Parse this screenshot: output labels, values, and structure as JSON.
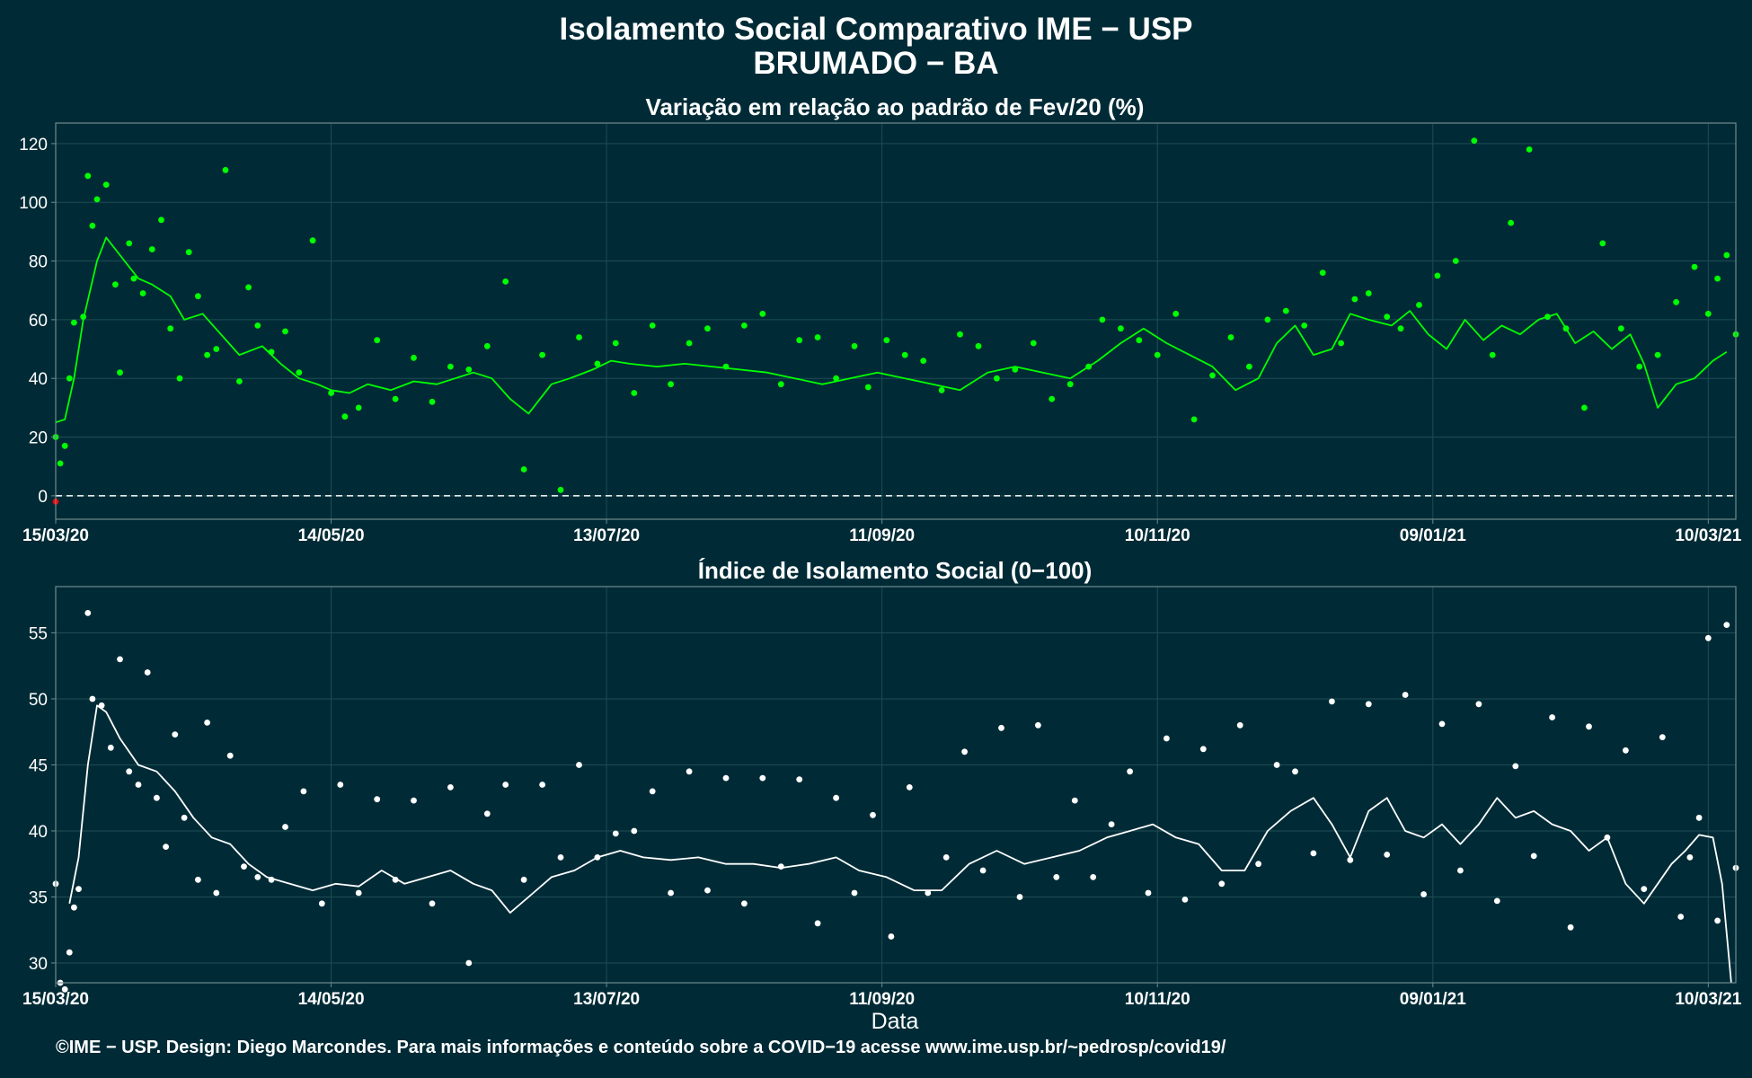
{
  "header": {
    "title": "Isolamento Social Comparativo IME − USP",
    "subtitle": "BRUMADO − BA"
  },
  "footer": {
    "caption": "©IME − USP. Design: Diego Marcondes. Para mais informações e conteúdo sobre a COVID−19 acesse www.ime.usp.br/~pedrosp/covid19/"
  },
  "colors": {
    "background": "#002b36",
    "panel_border": "#6d8a8e",
    "grid": "#1e4c54",
    "variation_points": "#00ff00",
    "variation_line": "#00ff00",
    "negative_point": "#ff0000",
    "index_points": "#ffffff",
    "index_line": "#ffffff",
    "text": "#ffffff"
  },
  "chart_data": [
    {
      "type": "scatter",
      "title": "Variação em relação ao padrão de Fev/20 (%)",
      "xlabel": "",
      "ylabel": "",
      "x_range": [
        "2020-03-15",
        "2021-03-16"
      ],
      "x_ticks": [
        "15/03/20",
        "14/05/20",
        "13/07/20",
        "11/09/20",
        "10/11/20",
        "09/01/21",
        "10/03/21"
      ],
      "ylim": [
        -8,
        127
      ],
      "y_ticks": [
        0,
        20,
        40,
        60,
        80,
        100,
        120
      ],
      "reference_line": {
        "y": 0,
        "style": "dashed"
      },
      "grid": true,
      "series": [
        {
          "kind": "points",
          "x": [
            "2020-03-15",
            "2020-03-16",
            "2020-03-17",
            "2020-03-18",
            "2020-03-19",
            "2020-03-21",
            "2020-03-22",
            "2020-03-23",
            "2020-03-24",
            "2020-03-26",
            "2020-03-28",
            "2020-03-29",
            "2020-03-31",
            "2020-04-01",
            "2020-04-03",
            "2020-04-05",
            "2020-04-07",
            "2020-04-09",
            "2020-04-11",
            "2020-04-13",
            "2020-04-15",
            "2020-04-17",
            "2020-04-19",
            "2020-04-21",
            "2020-04-24",
            "2020-04-26",
            "2020-04-28",
            "2020-05-01",
            "2020-05-04",
            "2020-05-07",
            "2020-05-10",
            "2020-05-14",
            "2020-05-17",
            "2020-05-20",
            "2020-05-24",
            "2020-05-28",
            "2020-06-01",
            "2020-06-05",
            "2020-06-09",
            "2020-06-13",
            "2020-06-17",
            "2020-06-21",
            "2020-06-25",
            "2020-06-29",
            "2020-07-03",
            "2020-07-07",
            "2020-07-11",
            "2020-07-15",
            "2020-07-19",
            "2020-07-23",
            "2020-07-27",
            "2020-07-31",
            "2020-08-04",
            "2020-08-08",
            "2020-08-12",
            "2020-08-16",
            "2020-08-20",
            "2020-08-24",
            "2020-08-28",
            "2020-09-01",
            "2020-09-05",
            "2020-09-08",
            "2020-09-12",
            "2020-09-16",
            "2020-09-20",
            "2020-09-24",
            "2020-09-28",
            "2020-10-02",
            "2020-10-06",
            "2020-10-10",
            "2020-10-14",
            "2020-10-18",
            "2020-10-22",
            "2020-10-26",
            "2020-10-29",
            "2020-11-02",
            "2020-11-06",
            "2020-11-10",
            "2020-11-14",
            "2020-11-18",
            "2020-11-22",
            "2020-11-26",
            "2020-11-30",
            "2020-12-04",
            "2020-12-08",
            "2020-12-12",
            "2020-12-16",
            "2020-12-20",
            "2020-12-23",
            "2020-12-26",
            "2020-12-30",
            "2021-01-02",
            "2021-01-06",
            "2021-01-10",
            "2021-01-14",
            "2021-01-18",
            "2021-01-22",
            "2021-01-26",
            "2021-01-30",
            "2021-02-03",
            "2021-02-07",
            "2021-02-11",
            "2021-02-15",
            "2021-02-19",
            "2021-02-23",
            "2021-02-27",
            "2021-03-03",
            "2021-03-07",
            "2021-03-10",
            "2021-03-12",
            "2021-03-14",
            "2021-03-16"
          ],
          "y": [
            20,
            11,
            17,
            40,
            59,
            61,
            109,
            92,
            101,
            106,
            72,
            42,
            86,
            74,
            69,
            84,
            94,
            57,
            40,
            83,
            68,
            48,
            50,
            111,
            39,
            71,
            58,
            49,
            56,
            42,
            87,
            35,
            27,
            30,
            53,
            33,
            47,
            32,
            44,
            43,
            51,
            73,
            9,
            48,
            2,
            54,
            45,
            52,
            35,
            58,
            38,
            52,
            57,
            44,
            58,
            62,
            38,
            53,
            54,
            40,
            51,
            37,
            53,
            48,
            46,
            36,
            55,
            51,
            40,
            43,
            52,
            33,
            38,
            44,
            60,
            57,
            53,
            48,
            62,
            26,
            41,
            54,
            44,
            60,
            63,
            58,
            76,
            52,
            67,
            69,
            61,
            57,
            65,
            75,
            80,
            121,
            48,
            93,
            118,
            61,
            57,
            30,
            86,
            57,
            44,
            48,
            66,
            78,
            62,
            74,
            82,
            55
          ]
        },
        {
          "kind": "negative_point",
          "x": [
            "2020-03-15"
          ],
          "y": [
            -2
          ]
        },
        {
          "kind": "smoothed_line",
          "x": [
            "2020-03-15",
            "2020-03-17",
            "2020-03-19",
            "2020-03-21",
            "2020-03-24",
            "2020-03-26",
            "2020-03-29",
            "2020-04-02",
            "2020-04-05",
            "2020-04-09",
            "2020-04-12",
            "2020-04-16",
            "2020-04-20",
            "2020-04-24",
            "2020-04-29",
            "2020-05-03",
            "2020-05-07",
            "2020-05-11",
            "2020-05-14",
            "2020-05-18",
            "2020-05-22",
            "2020-05-27",
            "2020-06-01",
            "2020-06-06",
            "2020-06-10",
            "2020-06-14",
            "2020-06-18",
            "2020-06-22",
            "2020-06-26",
            "2020-07-01",
            "2020-07-05",
            "2020-07-10",
            "2020-07-14",
            "2020-07-18",
            "2020-07-24",
            "2020-07-30",
            "2020-08-05",
            "2020-08-11",
            "2020-08-17",
            "2020-08-23",
            "2020-08-29",
            "2020-09-04",
            "2020-09-10",
            "2020-09-16",
            "2020-09-22",
            "2020-09-28",
            "2020-10-04",
            "2020-10-10",
            "2020-10-16",
            "2020-10-22",
            "2020-10-28",
            "2020-11-02",
            "2020-11-07",
            "2020-11-12",
            "2020-11-17",
            "2020-11-22",
            "2020-11-27",
            "2020-12-02",
            "2020-12-06",
            "2020-12-10",
            "2020-12-14",
            "2020-12-18",
            "2020-12-22",
            "2020-12-26",
            "2020-12-31",
            "2021-01-04",
            "2021-01-08",
            "2021-01-12",
            "2021-01-16",
            "2021-01-20",
            "2021-01-24",
            "2021-01-28",
            "2021-02-01",
            "2021-02-05",
            "2021-02-09",
            "2021-02-13",
            "2021-02-17",
            "2021-02-21",
            "2021-02-24",
            "2021-02-27",
            "2021-03-03",
            "2021-03-07",
            "2021-03-11",
            "2021-03-14"
          ],
          "y": [
            25,
            26,
            40,
            60,
            80,
            88,
            82,
            74,
            72,
            68,
            60,
            62,
            55,
            48,
            51,
            45,
            40,
            38,
            36,
            35,
            38,
            36,
            39,
            38,
            40,
            42,
            40,
            33,
            28,
            38,
            40,
            43,
            46,
            45,
            44,
            45,
            44,
            43,
            42,
            40,
            38,
            40,
            42,
            40,
            38,
            36,
            42,
            44,
            42,
            40,
            46,
            52,
            57,
            52,
            48,
            44,
            36,
            40,
            52,
            58,
            48,
            50,
            62,
            60,
            58,
            63,
            55,
            50,
            60,
            53,
            58,
            55,
            60,
            62,
            52,
            56,
            50,
            55,
            45,
            30,
            38,
            40,
            46,
            49
          ]
        }
      ]
    },
    {
      "type": "scatter",
      "title": "Índice de Isolamento Social (0−100)",
      "xlabel": "Data",
      "ylabel": "",
      "x_range": [
        "2020-03-15",
        "2021-03-16"
      ],
      "x_ticks": [
        "15/03/20",
        "14/05/20",
        "13/07/20",
        "11/09/20",
        "10/11/20",
        "09/01/21",
        "10/03/21"
      ],
      "ylim": [
        28.5,
        58.5
      ],
      "y_ticks": [
        30,
        35,
        40,
        45,
        50,
        55
      ],
      "grid": true,
      "series": [
        {
          "kind": "points",
          "x": [
            "2020-03-15",
            "2020-03-16",
            "2020-03-17",
            "2020-03-18",
            "2020-03-19",
            "2020-03-20",
            "2020-03-22",
            "2020-03-23",
            "2020-03-25",
            "2020-03-27",
            "2020-03-29",
            "2020-03-31",
            "2020-04-02",
            "2020-04-04",
            "2020-04-06",
            "2020-04-08",
            "2020-04-10",
            "2020-04-12",
            "2020-04-15",
            "2020-04-17",
            "2020-04-19",
            "2020-04-22",
            "2020-04-25",
            "2020-04-28",
            "2020-05-01",
            "2020-05-04",
            "2020-05-08",
            "2020-05-12",
            "2020-05-16",
            "2020-05-20",
            "2020-05-24",
            "2020-05-28",
            "2020-06-01",
            "2020-06-05",
            "2020-06-09",
            "2020-06-13",
            "2020-06-17",
            "2020-06-21",
            "2020-06-25",
            "2020-06-29",
            "2020-07-03",
            "2020-07-07",
            "2020-07-11",
            "2020-07-15",
            "2020-07-19",
            "2020-07-23",
            "2020-07-27",
            "2020-07-31",
            "2020-08-04",
            "2020-08-08",
            "2020-08-12",
            "2020-08-16",
            "2020-08-20",
            "2020-08-24",
            "2020-08-28",
            "2020-09-01",
            "2020-09-05",
            "2020-09-09",
            "2020-09-13",
            "2020-09-17",
            "2020-09-21",
            "2020-09-25",
            "2020-09-29",
            "2020-10-03",
            "2020-10-07",
            "2020-10-11",
            "2020-10-15",
            "2020-10-19",
            "2020-10-23",
            "2020-10-27",
            "2020-10-31",
            "2020-11-04",
            "2020-11-08",
            "2020-11-12",
            "2020-11-16",
            "2020-11-20",
            "2020-11-24",
            "2020-11-28",
            "2020-12-02",
            "2020-12-06",
            "2020-12-10",
            "2020-12-14",
            "2020-12-18",
            "2020-12-22",
            "2020-12-26",
            "2020-12-30",
            "2021-01-03",
            "2021-01-07",
            "2021-01-11",
            "2021-01-15",
            "2021-01-19",
            "2021-01-23",
            "2021-01-27",
            "2021-01-31",
            "2021-02-04",
            "2021-02-08",
            "2021-02-12",
            "2021-02-16",
            "2021-02-20",
            "2021-02-24",
            "2021-02-28",
            "2021-03-04",
            "2021-03-06",
            "2021-03-08",
            "2021-03-10",
            "2021-03-12",
            "2021-03-14",
            "2021-03-16"
          ],
          "y": [
            36,
            28.5,
            28,
            30.8,
            34.2,
            35.6,
            56.5,
            50,
            49.5,
            46.3,
            53,
            44.5,
            43.5,
            52,
            42.5,
            38.8,
            47.3,
            41,
            36.3,
            48.2,
            35.3,
            45.7,
            37.3,
            36.5,
            36.3,
            40.3,
            43,
            34.5,
            43.5,
            35.3,
            42.4,
            36.3,
            42.3,
            34.5,
            43.3,
            30,
            41.3,
            43.5,
            36.3,
            43.5,
            38,
            45,
            38,
            39.8,
            40,
            43,
            35.3,
            44.5,
            35.5,
            44,
            34.5,
            44,
            37.3,
            43.9,
            33,
            42.5,
            35.3,
            41.2,
            32,
            43.3,
            35.3,
            38,
            46,
            37,
            47.8,
            35,
            48,
            36.5,
            42.3,
            36.5,
            40.5,
            44.5,
            35.3,
            47,
            34.8,
            46.2,
            36,
            48,
            37.5,
            45,
            44.5,
            38.3,
            49.8,
            37.8,
            49.6,
            38.2,
            50.3,
            35.2,
            48.1,
            37,
            49.6,
            34.7,
            44.9,
            38.1,
            48.6,
            32.7,
            47.9,
            39.5,
            46.1,
            35.6,
            47.1,
            33.5,
            38,
            41,
            54.6,
            33.2,
            55.6,
            37.2
          ]
        },
        {
          "kind": "smoothed_line",
          "x": [
            "2020-03-18",
            "2020-03-20",
            "2020-03-22",
            "2020-03-24",
            "2020-03-26",
            "2020-03-29",
            "2020-04-02",
            "2020-04-06",
            "2020-04-10",
            "2020-04-14",
            "2020-04-18",
            "2020-04-22",
            "2020-04-26",
            "2020-04-30",
            "2020-05-05",
            "2020-05-10",
            "2020-05-15",
            "2020-05-20",
            "2020-05-25",
            "2020-05-30",
            "2020-06-04",
            "2020-06-09",
            "2020-06-14",
            "2020-06-18",
            "2020-06-22",
            "2020-06-26",
            "2020-07-01",
            "2020-07-06",
            "2020-07-11",
            "2020-07-16",
            "2020-07-21",
            "2020-07-27",
            "2020-08-02",
            "2020-08-08",
            "2020-08-14",
            "2020-08-20",
            "2020-08-26",
            "2020-09-01",
            "2020-09-06",
            "2020-09-12",
            "2020-09-18",
            "2020-09-24",
            "2020-09-30",
            "2020-10-06",
            "2020-10-12",
            "2020-10-18",
            "2020-10-24",
            "2020-10-30",
            "2020-11-04",
            "2020-11-09",
            "2020-11-14",
            "2020-11-19",
            "2020-11-24",
            "2020-11-29",
            "2020-12-04",
            "2020-12-09",
            "2020-12-14",
            "2020-12-18",
            "2020-12-22",
            "2020-12-26",
            "2020-12-30",
            "2021-01-03",
            "2021-01-07",
            "2021-01-11",
            "2021-01-15",
            "2021-01-19",
            "2021-01-23",
            "2021-01-27",
            "2021-01-31",
            "2021-02-04",
            "2021-02-08",
            "2021-02-12",
            "2021-02-16",
            "2021-02-20",
            "2021-02-24",
            "2021-02-27",
            "2021-03-02",
            "2021-03-05",
            "2021-03-08",
            "2021-03-11",
            "2021-03-13",
            "2021-03-15"
          ],
          "y": [
            34.5,
            38,
            45,
            49.5,
            49,
            47,
            45,
            44.5,
            43,
            41,
            39.5,
            39,
            37.5,
            36.5,
            36,
            35.5,
            36,
            35.8,
            37,
            36,
            36.5,
            37,
            36,
            35.5,
            33.8,
            35,
            36.5,
            37,
            38,
            38.5,
            38,
            37.8,
            38,
            37.5,
            37.5,
            37.2,
            37.5,
            38,
            37,
            36.5,
            35.5,
            35.5,
            37.5,
            38.5,
            37.5,
            38,
            38.5,
            39.5,
            40,
            40.5,
            39.5,
            39,
            37,
            37,
            40,
            41.5,
            42.5,
            40.5,
            38,
            41.5,
            42.5,
            40,
            39.5,
            40.5,
            39,
            40.5,
            42.5,
            41,
            41.5,
            40.5,
            40,
            38.5,
            39.5,
            36,
            34.5,
            36,
            37.5,
            38.5,
            39.7,
            39.5,
            36,
            28.5
          ]
        }
      ]
    }
  ]
}
